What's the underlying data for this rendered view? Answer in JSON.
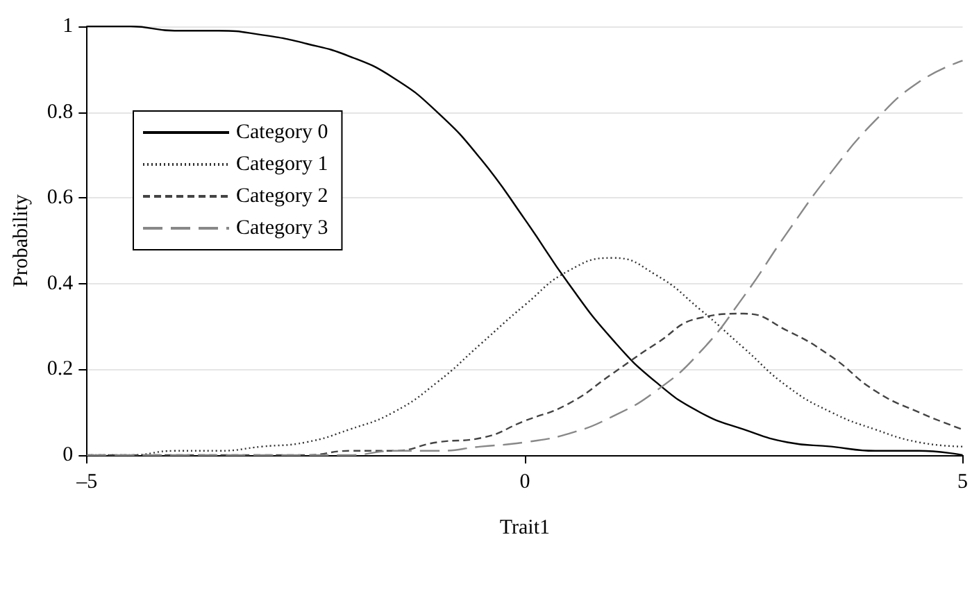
{
  "chart_data": {
    "type": "line",
    "xlabel": "Trait1",
    "ylabel": "Probability",
    "x": [
      -5,
      -4.5,
      -4,
      -3.5,
      -3,
      -2.5,
      -2,
      -1.5,
      -1,
      -0.5,
      0,
      0.5,
      1,
      1.5,
      2,
      2.5,
      3,
      3.5,
      4,
      4.5,
      5
    ],
    "series": [
      {
        "name": "Category 0",
        "color": "#000000",
        "line_style": "solid",
        "values": [
          1.0,
          1.0,
          0.99,
          0.99,
          0.98,
          0.96,
          0.93,
          0.88,
          0.8,
          0.69,
          0.55,
          0.4,
          0.27,
          0.17,
          0.1,
          0.06,
          0.03,
          0.02,
          0.01,
          0.01,
          0.0
        ]
      },
      {
        "name": "Category 1",
        "color": "#333333",
        "line_style": "dotted",
        "values": [
          0.0,
          0.0,
          0.01,
          0.01,
          0.02,
          0.03,
          0.06,
          0.1,
          0.17,
          0.26,
          0.35,
          0.43,
          0.46,
          0.42,
          0.34,
          0.25,
          0.16,
          0.1,
          0.06,
          0.03,
          0.02
        ]
      },
      {
        "name": "Category 2",
        "color": "#444444",
        "line_style": "dashed",
        "values": [
          0.0,
          0.0,
          0.0,
          0.0,
          0.0,
          0.0,
          0.01,
          0.01,
          0.03,
          0.04,
          0.08,
          0.12,
          0.19,
          0.26,
          0.32,
          0.33,
          0.29,
          0.23,
          0.15,
          0.1,
          0.06
        ]
      },
      {
        "name": "Category 3",
        "color": "#888888",
        "line_style": "dashed",
        "values": [
          0.0,
          0.0,
          0.0,
          0.0,
          0.0,
          0.0,
          0.0,
          0.01,
          0.01,
          0.02,
          0.03,
          0.05,
          0.09,
          0.15,
          0.24,
          0.37,
          0.52,
          0.66,
          0.78,
          0.87,
          0.92
        ]
      }
    ],
    "xlim": [
      -5,
      5
    ],
    "xticks": [
      {
        "value": -5,
        "label": "–5"
      },
      0,
      5
    ],
    "ylim": [
      0,
      1
    ],
    "yticks": [
      0,
      0.2,
      0.4,
      0.6,
      0.8,
      1
    ],
    "grid": "y",
    "legend": "top left",
    "marker": "none"
  }
}
